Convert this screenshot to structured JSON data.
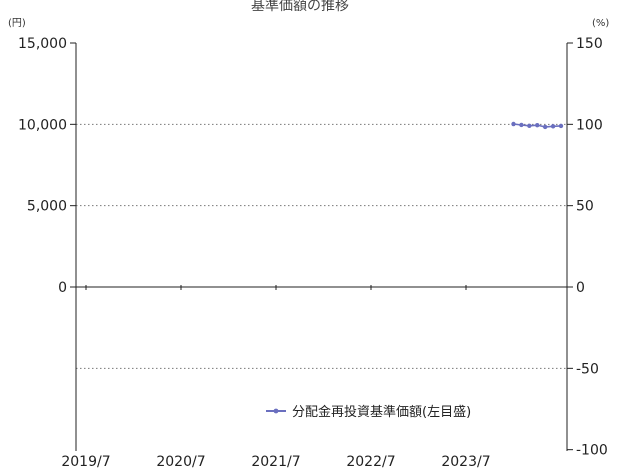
{
  "title": "基準価額の推移",
  "left_unit": "(円)",
  "right_unit": "(%)",
  "chart_data": {
    "type": "line",
    "title": "",
    "xlabel": "",
    "ylabel": "",
    "x_tick_labels": [
      "2019/7",
      "2020/7",
      "2021/7",
      "2022/7",
      "2023/7"
    ],
    "y_left": {
      "range": [
        0,
        15000
      ],
      "ticks": [
        0,
        5000,
        10000,
        15000
      ],
      "tick_labels": [
        "0",
        "5,000",
        "10,000",
        "15,000"
      ]
    },
    "y_right": {
      "range": [
        -100,
        150
      ],
      "ticks": [
        -100,
        -50,
        0,
        50,
        100,
        150
      ],
      "tick_labels": [
        "-100",
        "-50",
        "0",
        "50",
        "100",
        "150"
      ]
    },
    "gridlines_dotted": [
      10000,
      5000,
      -50
    ],
    "series": [
      {
        "name": "分配金再投資基準価額(左目盛)",
        "axis": "left",
        "color": "#6a6fbf",
        "x": [
          "2024/1",
          "2024/2",
          "2024/3",
          "2024/4",
          "2024/5",
          "2024/6",
          "2024/7"
        ],
        "values": [
          10020,
          9960,
          9910,
          9950,
          9840,
          9880,
          9900
        ]
      }
    ],
    "legend": {
      "position": "bottom-right",
      "entries": [
        "分配金再投資基準価額(左目盛)"
      ]
    },
    "grid": false
  }
}
